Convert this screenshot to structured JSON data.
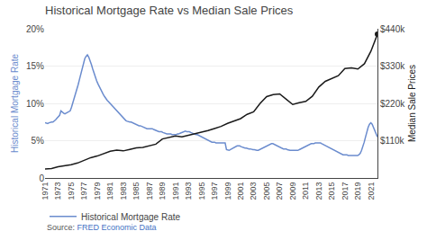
{
  "chart_data": {
    "type": "line",
    "title": "Historical Mortgage Rate vs Median Sale Prices",
    "y_label": "Historical Mortgage Rate",
    "y2_label": "Median Sale Prices",
    "annotations": [
      {
        "text": "Source: ",
        "color": "#555555"
      },
      {
        "text": "FRED Economic Data",
        "color": "#4472c4"
      }
    ],
    "xlim": [
      1971,
      2022
    ],
    "xticks": [
      1971,
      1973,
      1975,
      1977,
      1979,
      1981,
      1983,
      1985,
      1987,
      1989,
      1991,
      1993,
      1995,
      1997,
      1999,
      2001,
      2003,
      2005,
      2007,
      2009,
      2011,
      2013,
      2015,
      2017,
      2019,
      2021
    ],
    "ylim": [
      0,
      0.2
    ],
    "yticks": [
      0,
      {
        "value": 0.05,
        "label": "5%"
      },
      {
        "value": 0.1,
        "label": "10%"
      },
      {
        "value": 0.15,
        "label": "15%"
      },
      {
        "value": 0.2,
        "label": "20%"
      }
    ],
    "y2lim": [
      0,
      440000
    ],
    "y2ticks": [
      {
        "value": 110000,
        "label": "$110k"
      },
      {
        "value": 220000,
        "label": "$220k"
      },
      {
        "value": 330000,
        "label": "$330k"
      },
      {
        "value": 440000,
        "label": "$440k"
      }
    ],
    "grid": true,
    "legend": "lower left",
    "series": [
      {
        "name": "Historical Mortgage Rate",
        "color": "#6b8cce",
        "x": [
          1971,
          1971.203,
          1971.406,
          1971.61,
          1971.813,
          1972.016,
          1972.219,
          1972.422,
          1972.625,
          1972.829,
          1973.032,
          1973.235,
          1973.438,
          1973.641,
          1973.845,
          1974.048,
          1974.251,
          1974.454,
          1974.657,
          1974.861,
          1975.064,
          1975.267,
          1975.47,
          1975.673,
          1975.876,
          1976.08,
          1976.283,
          1976.486,
          1976.689,
          1976.892,
          1977.096,
          1977.299,
          1977.502,
          1977.705,
          1977.908,
          1978.112,
          1978.315,
          1978.518,
          1978.721,
          1978.924,
          1979.127,
          1979.331,
          1979.534,
          1979.737,
          1979.94,
          1980.143,
          1980.347,
          1980.55,
          1980.753,
          1980.956,
          1981.159,
          1981.363,
          1981.566,
          1981.769,
          1981.972,
          1982.175,
          1982.378,
          1982.582,
          1982.785,
          1982.988,
          1983.191,
          1983.394,
          1983.598,
          1983.801,
          1984.004,
          1984.207,
          1984.41,
          1984.614,
          1984.817,
          1985.02,
          1985.223,
          1985.426,
          1985.629,
          1985.833,
          1986.036,
          1986.239,
          1986.442,
          1986.645,
          1986.849,
          1987.052,
          1987.255,
          1987.458,
          1987.661,
          1987.865,
          1988.068,
          1988.271,
          1988.474,
          1988.677,
          1988.88,
          1989.084,
          1989.287,
          1989.49,
          1989.693,
          1989.896,
          1990.1,
          1990.303,
          1990.506,
          1990.709,
          1990.912,
          1991.116,
          1991.319,
          1991.522,
          1991.725,
          1991.928,
          1992.131,
          1992.335,
          1992.538,
          1992.741,
          1992.944,
          1993.147,
          1993.351,
          1993.554,
          1993.757,
          1993.96,
          1994.163,
          1994.367,
          1994.57,
          1994.773,
          1994.976,
          1995.179,
          1995.382,
          1995.586,
          1995.789,
          1995.992,
          1996.195,
          1996.398,
          1996.602,
          1996.805,
          1997.008,
          1997.211,
          1997.414,
          1997.618,
          1997.821,
          1998.024,
          1998.227,
          1998.43,
          1998.633,
          1998.837,
          1999.04,
          1999.243,
          1999.446,
          1999.649,
          1999.853,
          2000.056,
          2000.259,
          2000.462,
          2000.665,
          2000.869,
          2001.072,
          2001.275,
          2001.478,
          2001.681,
          2001.884,
          2002.088,
          2002.291,
          2002.494,
          2002.697,
          2002.9,
          2003.104,
          2003.307,
          2003.51,
          2003.713,
          2003.916,
          2004.12,
          2004.323,
          2004.526,
          2004.729,
          2004.932,
          2005.135,
          2005.339,
          2005.542,
          2005.745,
          2005.948,
          2006.151,
          2006.355,
          2006.558,
          2006.761,
          2006.964,
          2007.167,
          2007.371,
          2007.574,
          2007.777,
          2007.98,
          2008.183,
          2008.386,
          2008.59,
          2008.793,
          2008.996,
          2009.199,
          2009.402,
          2009.606,
          2009.809,
          2010.012,
          2010.215,
          2010.418,
          2010.622,
          2010.825,
          2011.028,
          2011.231,
          2011.434,
          2011.637,
          2011.841,
          2012.044,
          2012.247,
          2012.45,
          2012.653,
          2012.857,
          2013.06,
          2013.263,
          2013.466,
          2013.669,
          2013.873,
          2014.076,
          2014.279,
          2014.482,
          2014.685,
          2014.888,
          2015.092,
          2015.295,
          2015.498,
          2015.701,
          2015.904,
          2016.108,
          2016.311,
          2016.514,
          2016.717,
          2016.92,
          2017.124,
          2017.327,
          2017.53,
          2017.733,
          2017.936,
          2018.139,
          2018.343,
          2018.546,
          2018.749,
          2018.952,
          2019.155,
          2019.359,
          2019.562,
          2019.765,
          2019.968,
          2020.171,
          2020.375,
          2020.578,
          2020.781,
          2020.984,
          2021.187,
          2021.39,
          2021.594,
          2021.797,
          2022
        ],
        "values": [
          0.074,
          0.073,
          0.073,
          0.074,
          0.075,
          0.075,
          0.075,
          0.076,
          0.078,
          0.08,
          0.082,
          0.084,
          0.09,
          0.088,
          0.087,
          0.086,
          0.087,
          0.087,
          0.088,
          0.09,
          0.095,
          0.1,
          0.107,
          0.113,
          0.118,
          0.125,
          0.132,
          0.14,
          0.148,
          0.155,
          0.16,
          0.163,
          0.165,
          0.162,
          0.158,
          0.152,
          0.146,
          0.14,
          0.134,
          0.13,
          0.126,
          0.122,
          0.118,
          0.115,
          0.112,
          0.109,
          0.106,
          0.104,
          0.102,
          0.1,
          0.098,
          0.096,
          0.094,
          0.092,
          0.09,
          0.088,
          0.086,
          0.084,
          0.082,
          0.08,
          0.079,
          0.077,
          0.076,
          0.075,
          0.075,
          0.075,
          0.074,
          0.073,
          0.073,
          0.072,
          0.071,
          0.07,
          0.07,
          0.069,
          0.069,
          0.068,
          0.067,
          0.066,
          0.066,
          0.066,
          0.066,
          0.066,
          0.065,
          0.064,
          0.064,
          0.063,
          0.062,
          0.062,
          0.062,
          0.061,
          0.06,
          0.059,
          0.059,
          0.059,
          0.059,
          0.059,
          0.058,
          0.058,
          0.058,
          0.058,
          0.059,
          0.059,
          0.06,
          0.061,
          0.062,
          0.063,
          0.063,
          0.062,
          0.062,
          0.062,
          0.061,
          0.06,
          0.059,
          0.058,
          0.058,
          0.058,
          0.057,
          0.056,
          0.055,
          0.054,
          0.053,
          0.052,
          0.051,
          0.05,
          0.049,
          0.049,
          0.048,
          0.048,
          0.048,
          0.047,
          0.047,
          0.047,
          0.047,
          0.047,
          0.047,
          0.047,
          0.047,
          0.038,
          0.037,
          0.037,
          0.038,
          0.039,
          0.04,
          0.041,
          0.042,
          0.043,
          0.043,
          0.043,
          0.042,
          0.041,
          0.04,
          0.04,
          0.04,
          0.039,
          0.039,
          0.039,
          0.038,
          0.038,
          0.038,
          0.037,
          0.037,
          0.037,
          0.038,
          0.039,
          0.04,
          0.041,
          0.042,
          0.043,
          0.044,
          0.045,
          0.046,
          0.046,
          0.046,
          0.045,
          0.044,
          0.043,
          0.042,
          0.041,
          0.04,
          0.04,
          0.039,
          0.039,
          0.039,
          0.038,
          0.037,
          0.037,
          0.037,
          0.037,
          0.037,
          0.037,
          0.037,
          0.037,
          0.038,
          0.039,
          0.04,
          0.041,
          0.042,
          0.043,
          0.044,
          0.045,
          0.046,
          0.046,
          0.046,
          0.046,
          0.047,
          0.047,
          0.047,
          0.047,
          0.047,
          0.046,
          0.045,
          0.044,
          0.043,
          0.042,
          0.041,
          0.04,
          0.039,
          0.038,
          0.037,
          0.036,
          0.035,
          0.034,
          0.033,
          0.032,
          0.031,
          0.031,
          0.031,
          0.031,
          0.031,
          0.03,
          0.03,
          0.03,
          0.03,
          0.03,
          0.03,
          0.03,
          0.03,
          0.031,
          0.033,
          0.037,
          0.042,
          0.048,
          0.055,
          0.062,
          0.068,
          0.072,
          0.074,
          0.072,
          0.068,
          0.062,
          0.058,
          0.055
        ]
      },
      {
        "color": "#1a1a1a",
        "axis": "y2",
        "x": [
          1971,
          1972,
          1973,
          1974,
          1975,
          1976,
          1977,
          1978,
          1979,
          1980,
          1981,
          1982,
          1983,
          1984,
          1985,
          1986,
          1987,
          1988,
          1989,
          1990,
          1991,
          1992,
          1993,
          1994,
          1995,
          1996,
          1997,
          1998,
          1999,
          2000,
          2001,
          2002,
          2003,
          2004,
          2005,
          2006,
          2007,
          2008,
          2009,
          2010,
          2011,
          2012,
          2013,
          2014,
          2015,
          2016,
          2017,
          2018,
          2019,
          2020,
          2021,
          2022
        ],
        "values": [
          26700,
          27600,
          32900,
          35900,
          39000,
          44200,
          51900,
          59900,
          64700,
          72200,
          78900,
          82200,
          79900,
          84400,
          88900,
          90000,
          95400,
          99700,
          115000,
          120000,
          124000,
          121500,
          126000,
          130000,
          133900,
          140000,
          145800,
          152000,
          161000,
          169000,
          175000,
          187600,
          195000,
          220000,
          240000,
          246000,
          247900,
          232400,
          216700,
          221800,
          226000,
          240700,
          268100,
          285000,
          294000,
          301700,
          323000,
          325000,
          321500,
          336900,
          374000,
          424000
        ]
      }
    ]
  }
}
